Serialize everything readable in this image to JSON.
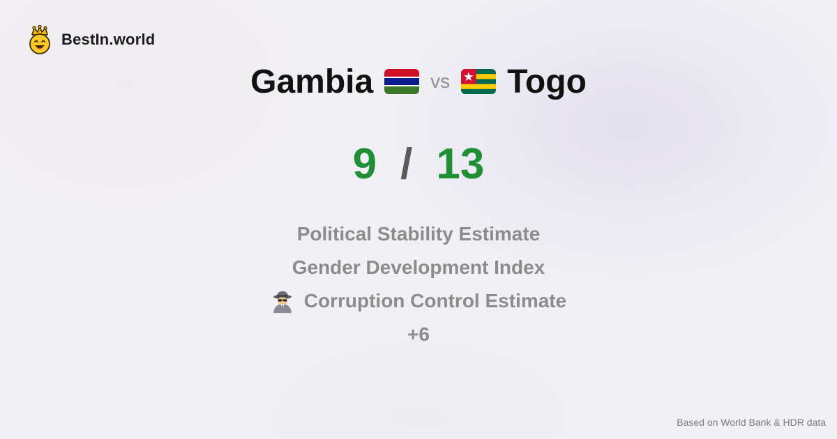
{
  "brand": {
    "name": "BestIn.world",
    "logo_icon": "crowned-smiley-icon"
  },
  "comparison": {
    "country_a": {
      "name": "Gambia",
      "flag_icon": "gambia-flag-icon",
      "score": "9"
    },
    "vs_label": "vs",
    "country_b": {
      "name": "Togo",
      "flag_icon": "togo-flag-icon",
      "score": "13"
    },
    "score_separator": "/"
  },
  "criteria": {
    "items": [
      {
        "label": "Political Stability Estimate"
      },
      {
        "label": "Gender Development Index"
      },
      {
        "label": "Corruption Control Estimate",
        "icon": "spy-icon"
      }
    ],
    "more_label": "+6"
  },
  "footer": {
    "source_note": "Based on World Bank & HDR data"
  },
  "colors": {
    "score_green": "#1f8f35",
    "muted_text": "#8c8c8c",
    "title_text": "#111111"
  }
}
